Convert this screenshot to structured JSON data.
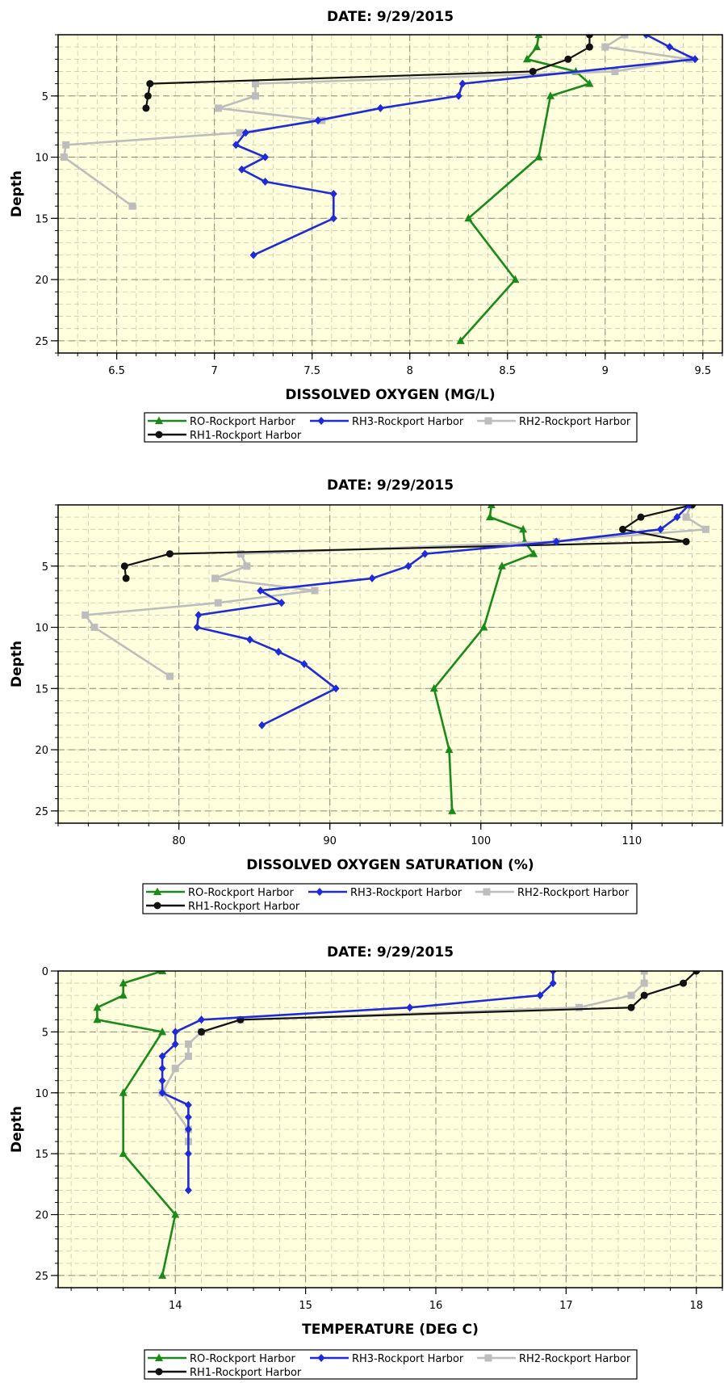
{
  "legend_series": [
    {
      "name": "RO-Rockport Harbor",
      "color": "#1a8a1a",
      "marker": "triangle"
    },
    {
      "name": "RH3-Rockport Harbor",
      "color": "#1f2bd6",
      "marker": "diamond"
    },
    {
      "name": "RH2-Rockport Harbor",
      "color": "#bdbdbd",
      "marker": "square"
    },
    {
      "name": "RH1-Rockport Harbor",
      "color": "#111111",
      "marker": "circle"
    }
  ],
  "chart_data": [
    {
      "type": "line",
      "title": "DATE: 9/29/2015",
      "xlabel": "DISSOLVED OXYGEN (MG/L)",
      "ylabel": "Depth",
      "xlim": [
        6.2,
        9.6
      ],
      "ylim": [
        26,
        0
      ],
      "x_ticks": [
        6.5,
        7,
        7.5,
        8,
        8.5,
        9,
        9.5
      ],
      "y_ticks": [
        5,
        10,
        15,
        20,
        25
      ],
      "grid": true,
      "legend": "bottom",
      "series": [
        {
          "name": "RO-Rockport Harbor",
          "points": [
            [
              8.66,
              0
            ],
            [
              8.65,
              1
            ],
            [
              8.6,
              2
            ],
            [
              8.85,
              3
            ],
            [
              8.92,
              4
            ],
            [
              8.72,
              5
            ],
            [
              8.66,
              10
            ],
            [
              8.3,
              15
            ],
            [
              8.54,
              20
            ],
            [
              8.26,
              25
            ]
          ]
        },
        {
          "name": "RH3-Rockport Harbor",
          "points": [
            [
              9.21,
              0
            ],
            [
              9.33,
              1
            ],
            [
              9.46,
              2
            ],
            [
              8.27,
              4
            ],
            [
              8.25,
              5
            ],
            [
              7.85,
              6
            ],
            [
              7.53,
              7
            ],
            [
              7.16,
              8
            ],
            [
              7.11,
              9
            ],
            [
              7.26,
              10
            ],
            [
              7.14,
              11
            ],
            [
              7.26,
              12
            ],
            [
              7.61,
              13
            ],
            [
              7.61,
              15
            ],
            [
              7.2,
              18
            ]
          ]
        },
        {
          "name": "RH2-Rockport Harbor",
          "points": [
            [
              9.1,
              0
            ],
            [
              9.0,
              1
            ],
            [
              9.43,
              2
            ],
            [
              9.05,
              3
            ],
            [
              7.21,
              4
            ],
            [
              7.21,
              5
            ],
            [
              7.02,
              6
            ],
            [
              7.55,
              7
            ],
            [
              7.13,
              8
            ],
            [
              6.24,
              9
            ],
            [
              6.23,
              10
            ],
            [
              6.58,
              14
            ]
          ]
        },
        {
          "name": "RH1-Rockport Harbor",
          "points": [
            [
              8.92,
              0
            ],
            [
              8.92,
              1
            ],
            [
              8.81,
              2
            ],
            [
              8.63,
              3
            ],
            [
              6.67,
              4
            ],
            [
              6.66,
              5
            ],
            [
              6.65,
              6
            ]
          ]
        }
      ]
    },
    {
      "type": "line",
      "title": "DATE: 9/29/2015",
      "xlabel": "DISSOLVED OXYGEN SATURATION (%)",
      "ylabel": "Depth",
      "xlim": [
        72,
        116
      ],
      "ylim": [
        26,
        0
      ],
      "x_ticks": [
        80,
        90,
        100,
        110
      ],
      "y_ticks": [
        5,
        10,
        15,
        20,
        25
      ],
      "grid": true,
      "legend": "bottom",
      "series": [
        {
          "name": "RO-Rockport Harbor",
          "points": [
            [
              100.7,
              0
            ],
            [
              100.6,
              1
            ],
            [
              102.8,
              2
            ],
            [
              102.9,
              3
            ],
            [
              103.5,
              4
            ],
            [
              101.4,
              5
            ],
            [
              100.2,
              10
            ],
            [
              96.9,
              15
            ],
            [
              97.9,
              20
            ],
            [
              98.1,
              25
            ]
          ]
        },
        {
          "name": "RH3-Rockport Harbor",
          "points": [
            [
              113.8,
              0
            ],
            [
              113.0,
              1
            ],
            [
              111.9,
              2
            ],
            [
              105.0,
              3
            ],
            [
              96.3,
              4
            ],
            [
              95.2,
              5
            ],
            [
              92.8,
              6
            ],
            [
              85.4,
              7
            ],
            [
              86.8,
              8
            ],
            [
              81.3,
              9
            ],
            [
              81.2,
              10
            ],
            [
              84.7,
              11
            ],
            [
              86.6,
              12
            ],
            [
              88.3,
              13
            ],
            [
              90.4,
              15
            ],
            [
              85.5,
              18
            ]
          ]
        },
        {
          "name": "RH2-Rockport Harbor",
          "points": [
            [
              113.9,
              0
            ],
            [
              113.6,
              1
            ],
            [
              114.9,
              2
            ],
            [
              105.0,
              3
            ],
            [
              84.1,
              4
            ],
            [
              84.5,
              5
            ],
            [
              82.4,
              6
            ],
            [
              89.0,
              7
            ],
            [
              82.6,
              8
            ],
            [
              73.8,
              9
            ],
            [
              74.4,
              10
            ],
            [
              79.4,
              14
            ]
          ]
        },
        {
          "name": "RH1-Rockport Harbor",
          "points": [
            [
              114.0,
              0
            ],
            [
              110.6,
              1
            ],
            [
              109.4,
              2
            ],
            [
              113.6,
              3
            ],
            [
              79.4,
              4
            ],
            [
              76.4,
              5
            ],
            [
              76.5,
              6
            ]
          ]
        }
      ]
    },
    {
      "type": "line",
      "title": "DATE: 9/29/2015",
      "xlabel": "TEMPERATURE (DEG C)",
      "ylabel": "Depth",
      "xlim": [
        13.1,
        18.2
      ],
      "ylim": [
        26,
        0
      ],
      "x_ticks": [
        14,
        15,
        16,
        17,
        18
      ],
      "y_ticks": [
        0,
        5,
        10,
        15,
        20,
        25
      ],
      "grid": true,
      "legend": "bottom",
      "series": [
        {
          "name": "RO-Rockport Harbor",
          "points": [
            [
              13.9,
              0
            ],
            [
              13.6,
              1
            ],
            [
              13.6,
              2
            ],
            [
              13.4,
              3
            ],
            [
              13.4,
              4
            ],
            [
              13.9,
              5
            ],
            [
              13.6,
              10
            ],
            [
              13.6,
              15
            ],
            [
              14.0,
              20
            ],
            [
              13.9,
              25
            ]
          ]
        },
        {
          "name": "RH3-Rockport Harbor",
          "points": [
            [
              16.9,
              0
            ],
            [
              16.9,
              1
            ],
            [
              16.8,
              2
            ],
            [
              15.8,
              3
            ],
            [
              14.2,
              4
            ],
            [
              14.0,
              5
            ],
            [
              14.0,
              6
            ],
            [
              13.9,
              7
            ],
            [
              13.9,
              8
            ],
            [
              13.9,
              9
            ],
            [
              13.9,
              10
            ],
            [
              14.1,
              11
            ],
            [
              14.1,
              12
            ],
            [
              14.1,
              13
            ],
            [
              14.1,
              15
            ],
            [
              14.1,
              18
            ]
          ]
        },
        {
          "name": "RH2-Rockport Harbor",
          "points": [
            [
              17.6,
              0
            ],
            [
              17.6,
              1
            ],
            [
              17.5,
              2
            ],
            [
              17.1,
              3
            ],
            [
              14.5,
              4
            ],
            [
              14.2,
              5
            ],
            [
              14.1,
              6
            ],
            [
              14.1,
              7
            ],
            [
              14.0,
              8
            ],
            [
              13.9,
              10
            ],
            [
              14.1,
              13
            ],
            [
              14.1,
              14
            ]
          ]
        },
        {
          "name": "RH1-Rockport Harbor",
          "points": [
            [
              18.0,
              0
            ],
            [
              17.9,
              1
            ],
            [
              17.6,
              2
            ],
            [
              17.5,
              3
            ],
            [
              14.5,
              4
            ],
            [
              14.2,
              5
            ]
          ]
        }
      ]
    }
  ]
}
